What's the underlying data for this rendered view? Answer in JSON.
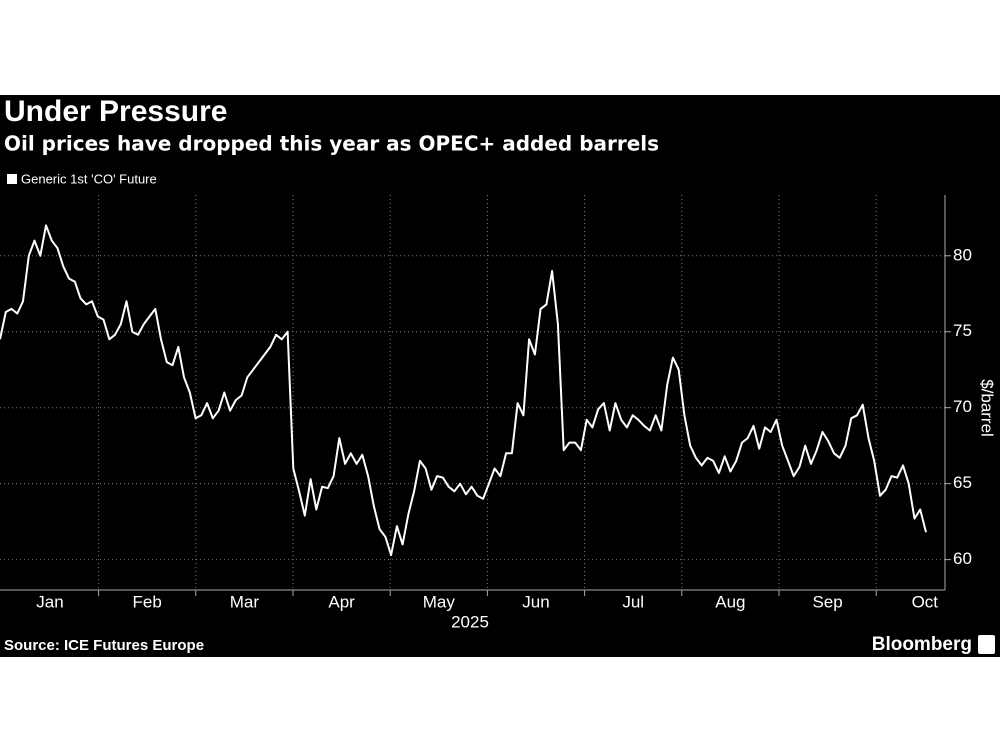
{
  "chart_data": {
    "type": "line",
    "title": "Under Pressure",
    "subtitle": "Oil prices have dropped this year as OPEC+ added barrels",
    "ylabel": "$/barrel",
    "x_group_label": "2025",
    "source": "Source: ICE Futures Europe",
    "brand": "Bloomberg",
    "x_labels": [
      "Jan",
      "Feb",
      "Mar",
      "Apr",
      "May",
      "Jun",
      "Jul",
      "Aug",
      "Sep",
      "Oct"
    ],
    "ylim": [
      58,
      84
    ],
    "yticks": [
      60,
      65,
      70,
      75,
      80
    ],
    "grid": true,
    "series": [
      {
        "name": "Generic 1st 'CO' Future",
        "color": "#ffffff",
        "values": [
          74.5,
          76.3,
          76.5,
          76.2,
          77,
          80,
          81,
          80,
          82,
          81,
          80.5,
          79.3,
          78.5,
          78.3,
          77.2,
          76.8,
          77,
          76,
          75.8,
          74.5,
          74.8,
          75.5,
          77,
          75,
          74.8,
          75.5,
          76,
          76.5,
          74.5,
          73,
          72.8,
          74,
          72,
          71,
          69.3,
          69.5,
          70.3,
          69.3,
          69.8,
          71,
          69.8,
          70.5,
          70.8,
          72,
          72.5,
          73,
          73.5,
          74,
          74.8,
          74.5,
          75,
          66,
          64.5,
          62.9,
          65.3,
          63.3,
          64.8,
          64.7,
          65.5,
          68,
          66.3,
          67,
          66.3,
          66.9,
          65.5,
          63.5,
          62,
          61.5,
          60.3,
          62.2,
          61,
          63,
          64.5,
          66.5,
          66,
          64.6,
          65.5,
          65.4,
          64.8,
          64.5,
          65,
          64.3,
          64.8,
          64.2,
          64,
          65,
          66,
          65.5,
          67,
          67,
          70.3,
          69.5,
          74.5,
          73.5,
          76.5,
          76.8,
          79,
          75.5,
          67.2,
          67.7,
          67.7,
          67.2,
          69.2,
          68.7,
          69.9,
          70.3,
          68.5,
          70.3,
          69.2,
          68.7,
          69.5,
          69.2,
          68.8,
          68.5,
          69.5,
          68.5,
          71.5,
          73.3,
          72.5,
          69.5,
          67.5,
          66.7,
          66.2,
          66.7,
          66.5,
          65.7,
          66.8,
          65.8,
          66.5,
          67.7,
          68,
          68.8,
          67.3,
          68.7,
          68.4,
          69.2,
          67.5,
          66.5,
          65.5,
          66.1,
          67.5,
          66.3,
          67.2,
          68.4,
          67.8,
          67,
          66.7,
          67.5,
          69.3,
          69.5,
          70.2,
          68,
          66.5,
          64.2,
          64.6,
          65.5,
          65.4,
          66.2,
          65,
          62.7,
          63.3,
          61.8
        ]
      }
    ]
  }
}
